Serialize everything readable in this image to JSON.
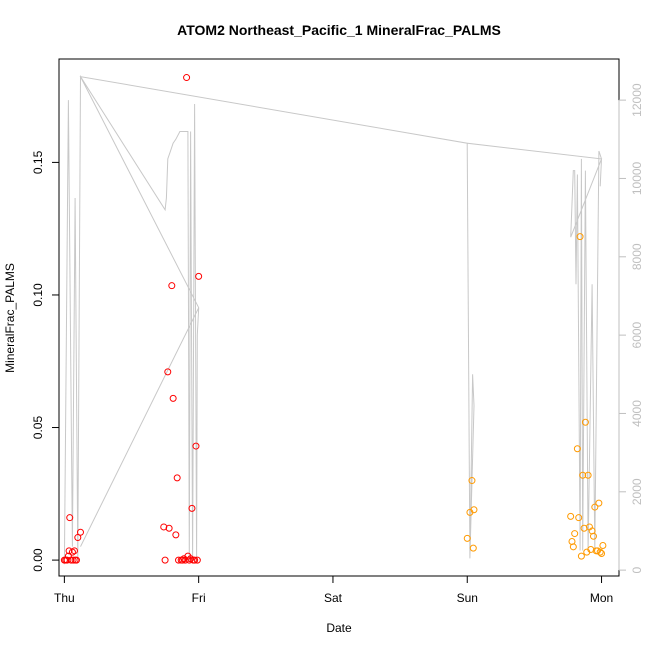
{
  "chart_data": {
    "type": "scatter",
    "title": "ATOM2 Northeast_Pacific_1 MineralFrac_PALMS",
    "xlabel": "Date",
    "ylabel": "MineralFrac_PALMS",
    "xlim": [
      -0.04,
      4.13
    ],
    "ylim": [
      -0.006,
      0.189
    ],
    "x_ticks": [
      0,
      1,
      2,
      3,
      4
    ],
    "x_tick_labels": [
      "Thu",
      "Fri",
      "Sat",
      "Sun",
      "Mon"
    ],
    "y_ticks": [
      0.0,
      0.05,
      0.1,
      0.15
    ],
    "y_tick_labels": [
      "0.00",
      "0.05",
      "0.10",
      "0.15"
    ],
    "y2_lim": [
      -150,
      13050
    ],
    "y2_ticks": [
      0,
      2000,
      4000,
      6000,
      8000,
      10000,
      12000
    ],
    "y2_tick_labels": [
      "0",
      "2000",
      "4000",
      "6000",
      "8000",
      "10000",
      "12000"
    ],
    "colors": {
      "series_red": "#ff0000",
      "series_orange": "#ff9a00",
      "altitude_line": "#c8c8c8"
    },
    "series": [
      {
        "color": "#ff0000",
        "points": [
          [
            0.0,
            0.0
          ],
          [
            0.01,
            0.0
          ],
          [
            0.02,
            0.0
          ],
          [
            0.03,
            0.0015
          ],
          [
            0.035,
            0.0035
          ],
          [
            0.04,
            0.016
          ],
          [
            0.05,
            0.0
          ],
          [
            0.06,
            0.003
          ],
          [
            0.065,
            0.0
          ],
          [
            0.075,
            0.0035
          ],
          [
            0.08,
            0.0
          ],
          [
            0.09,
            0.0
          ],
          [
            0.1,
            0.0085
          ],
          [
            0.12,
            0.0105
          ],
          [
            0.74,
            0.0125
          ],
          [
            0.75,
            0.0
          ],
          [
            0.77,
            0.071
          ],
          [
            0.78,
            0.012
          ],
          [
            0.8,
            0.1035
          ],
          [
            0.81,
            0.061
          ],
          [
            0.83,
            0.0095
          ],
          [
            0.84,
            0.031
          ],
          [
            0.85,
            0.0
          ],
          [
            0.87,
            0.0
          ],
          [
            0.88,
            0.0
          ],
          [
            0.89,
            0.0005
          ],
          [
            0.9,
            0.0
          ],
          [
            0.91,
            0.182
          ],
          [
            0.92,
            0.0015
          ],
          [
            0.93,
            0.0
          ],
          [
            0.94,
            0.0005
          ],
          [
            0.95,
            0.0195
          ],
          [
            0.96,
            0.0
          ],
          [
            0.97,
            0.0
          ],
          [
            0.98,
            0.043
          ],
          [
            0.99,
            0.0
          ],
          [
            1.0,
            0.107
          ]
        ]
      },
      {
        "color": "#ff9a00",
        "points": [
          [
            3.0,
            0.0082
          ],
          [
            3.02,
            0.018
          ],
          [
            3.035,
            0.03
          ],
          [
            3.045,
            0.0045
          ],
          [
            3.05,
            0.019
          ],
          [
            3.77,
            0.0165
          ],
          [
            3.78,
            0.007
          ],
          [
            3.79,
            0.005
          ],
          [
            3.8,
            0.01
          ],
          [
            3.82,
            0.042
          ],
          [
            3.83,
            0.016
          ],
          [
            3.84,
            0.122
          ],
          [
            3.85,
            0.0015
          ],
          [
            3.86,
            0.032
          ],
          [
            3.87,
            0.012
          ],
          [
            3.88,
            0.052
          ],
          [
            3.89,
            0.003
          ],
          [
            3.9,
            0.032
          ],
          [
            3.91,
            0.0125
          ],
          [
            3.92,
            0.004
          ],
          [
            3.93,
            0.011
          ],
          [
            3.94,
            0.009
          ],
          [
            3.95,
            0.02
          ],
          [
            3.96,
            0.0035
          ],
          [
            3.97,
            0.0035
          ],
          [
            3.98,
            0.0215
          ],
          [
            3.99,
            0.003
          ],
          [
            4.0,
            0.0025
          ],
          [
            4.01,
            0.0055
          ]
        ]
      },
      {
        "type": "line",
        "axis": "right",
        "color": "#c8c8c8",
        "points": [
          [
            0.0,
            150
          ],
          [
            0.03,
            12000
          ],
          [
            0.06,
            600
          ],
          [
            0.08,
            9500
          ],
          [
            0.1,
            300
          ],
          [
            0.12,
            12600
          ],
          [
            0.75,
            9200
          ],
          [
            0.76,
            9500
          ],
          [
            0.77,
            10500
          ],
          [
            0.79,
            10700
          ],
          [
            0.81,
            10900
          ],
          [
            0.83,
            11000
          ],
          [
            0.86,
            11200
          ],
          [
            0.9,
            11200
          ],
          [
            0.92,
            11200
          ],
          [
            0.93,
            200
          ],
          [
            0.94,
            11200
          ],
          [
            0.955,
            200
          ],
          [
            0.97,
            11900
          ],
          [
            0.985,
            200
          ],
          [
            0.99,
            6000
          ],
          [
            1.0,
            6700
          ],
          [
            0.12,
            600
          ],
          [
            1.0,
            6700
          ],
          [
            0.12,
            12600
          ],
          [
            3.0,
            10900
          ],
          [
            3.02,
            300
          ],
          [
            3.04,
            5000
          ],
          [
            3.05,
            4200
          ],
          [
            3.02,
            300
          ],
          [
            3.0,
            10900
          ],
          [
            4.0,
            10500
          ],
          [
            3.77,
            8500
          ],
          [
            3.79,
            10200
          ],
          [
            3.8,
            10200
          ],
          [
            3.81,
            7300
          ],
          [
            3.82,
            10100
          ],
          [
            3.84,
            500
          ],
          [
            3.85,
            10500
          ],
          [
            3.86,
            500
          ],
          [
            3.88,
            10200
          ],
          [
            3.9,
            500
          ],
          [
            3.93,
            7300
          ],
          [
            3.95,
            500
          ],
          [
            3.98,
            10700
          ],
          [
            4.0,
            10500
          ],
          [
            3.99,
            9800
          ],
          [
            4.0,
            10500
          ]
        ]
      }
    ]
  }
}
